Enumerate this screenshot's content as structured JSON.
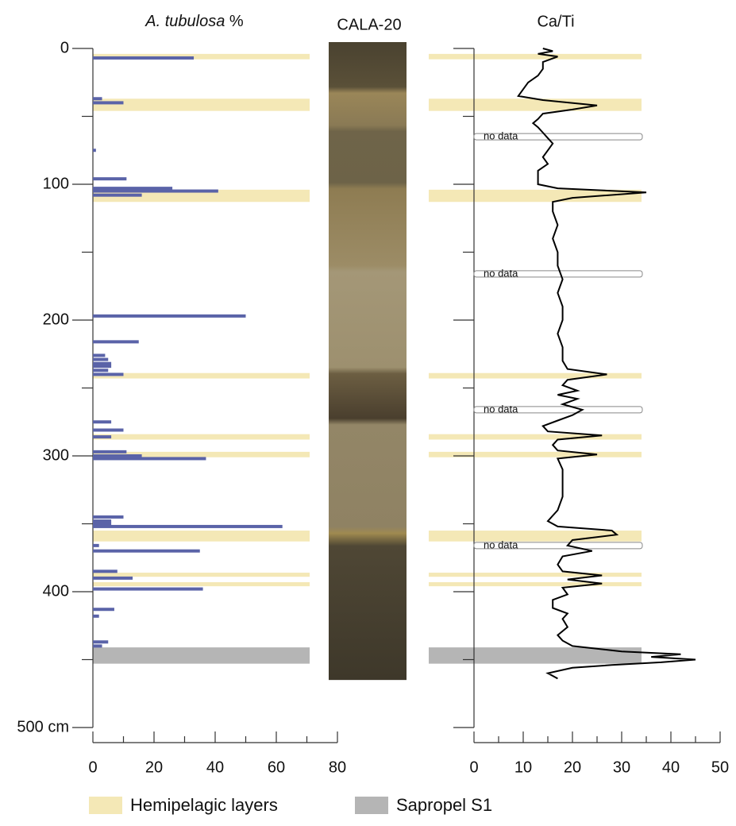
{
  "chart_data": [
    {
      "type": "hbar",
      "title": "A. tubulosa",
      "unit": "%",
      "xlim": [
        0,
        80
      ],
      "xticks": [
        0,
        20,
        40,
        60,
        80
      ],
      "xminorticks": [
        10,
        30,
        50,
        70
      ],
      "ylim": [
        0,
        500
      ],
      "yticks": [
        0,
        100,
        200,
        300,
        400,
        {
          "value": 500,
          "label": "500 cm"
        }
      ],
      "yminorticks": [
        50,
        150,
        250,
        350,
        450
      ],
      "series": [
        {
          "color": "#5a63a8",
          "depth": [
            7,
            37,
            40,
            75,
            96,
            103,
            105,
            108,
            197,
            216,
            226,
            229,
            232,
            234,
            237,
            240,
            275,
            281,
            286,
            297,
            300,
            302,
            345,
            348,
            350,
            352,
            366,
            370,
            385,
            390,
            398,
            413,
            418,
            437,
            440
          ],
          "values": [
            33,
            3,
            10,
            1,
            11,
            26,
            41,
            16,
            50,
            15,
            4,
            5,
            6,
            6,
            5,
            10,
            6,
            10,
            6,
            11,
            16,
            37,
            10,
            6,
            6,
            62,
            2,
            35,
            8,
            13,
            36,
            7,
            2,
            5,
            3
          ]
        }
      ]
    },
    {
      "type": "core",
      "title": "CALA-20",
      "depth_range": [
        0,
        465
      ]
    },
    {
      "type": "line",
      "title": "Ca/Ti",
      "xlim": [
        0,
        50
      ],
      "xticks": [
        0,
        10,
        20,
        30,
        40,
        50
      ],
      "xminorticks": [
        5,
        15,
        25,
        35,
        45
      ],
      "ylim": [
        0,
        500
      ],
      "yticks": [
        0,
        100,
        200,
        300,
        400,
        500
      ],
      "yminorticks": [
        50,
        150,
        250,
        350,
        450
      ],
      "annotations": [
        {
          "label": "no data",
          "depth": 65
        },
        {
          "label": "no data",
          "depth": 166
        },
        {
          "label": "no data",
          "depth": 266
        },
        {
          "label": "no data",
          "depth": 366
        }
      ],
      "series": [
        {
          "color": "#000000",
          "depth": [
            0,
            2,
            4,
            6,
            10,
            15,
            20,
            25,
            30,
            35,
            38,
            42,
            45,
            48,
            52,
            55,
            58,
            62,
            66,
            70,
            75,
            80,
            85,
            90,
            95,
            100,
            103,
            106,
            110,
            113,
            120,
            130,
            140,
            150,
            160,
            170,
            180,
            190,
            200,
            210,
            220,
            230,
            236,
            240,
            244,
            248,
            252,
            255,
            258,
            262,
            266,
            270,
            274,
            278,
            282,
            285,
            288,
            292,
            296,
            299,
            302,
            310,
            320,
            330,
            340,
            348,
            352,
            355,
            358,
            362,
            366,
            370,
            374,
            380,
            385,
            388,
            391,
            394,
            397,
            402,
            406,
            412,
            416,
            420,
            426,
            432,
            436,
            440,
            444,
            446,
            448,
            450,
            452,
            454,
            456,
            460,
            464
          ],
          "values": [
            14,
            16,
            13,
            17,
            14,
            14,
            13,
            11,
            10,
            9,
            14,
            25,
            20,
            14,
            13,
            12,
            13,
            14,
            15,
            16,
            15,
            14,
            15,
            13,
            13,
            13,
            17,
            35,
            20,
            16,
            16,
            17,
            16,
            17,
            17,
            18,
            17,
            18,
            18,
            17,
            18,
            18,
            19,
            27,
            19,
            18,
            21,
            17,
            21,
            18,
            22,
            20,
            17,
            14,
            15,
            26,
            17,
            16,
            17,
            25,
            17,
            18,
            18,
            18,
            17,
            15,
            17,
            28,
            29,
            20,
            19,
            24,
            18,
            17,
            18,
            26,
            19,
            26,
            18,
            19,
            16,
            16,
            19,
            18,
            19,
            17,
            18,
            20,
            30,
            42,
            36,
            45,
            38,
            28,
            20,
            15,
            17
          ]
        }
      ]
    }
  ],
  "layers": [
    {
      "name": "Hemipelagic layers",
      "color": "#f4e8b6",
      "ranges": [
        [
          4,
          8
        ],
        [
          37,
          46
        ],
        [
          104,
          113
        ],
        [
          239,
          243
        ],
        [
          284,
          288
        ],
        [
          297,
          301
        ],
        [
          355,
          363
        ],
        [
          386,
          389
        ],
        [
          393,
          396
        ]
      ]
    },
    {
      "name": "Sapropel S1",
      "color": "#b5b5b5",
      "ranges": [
        [
          441,
          453
        ]
      ]
    }
  ]
}
